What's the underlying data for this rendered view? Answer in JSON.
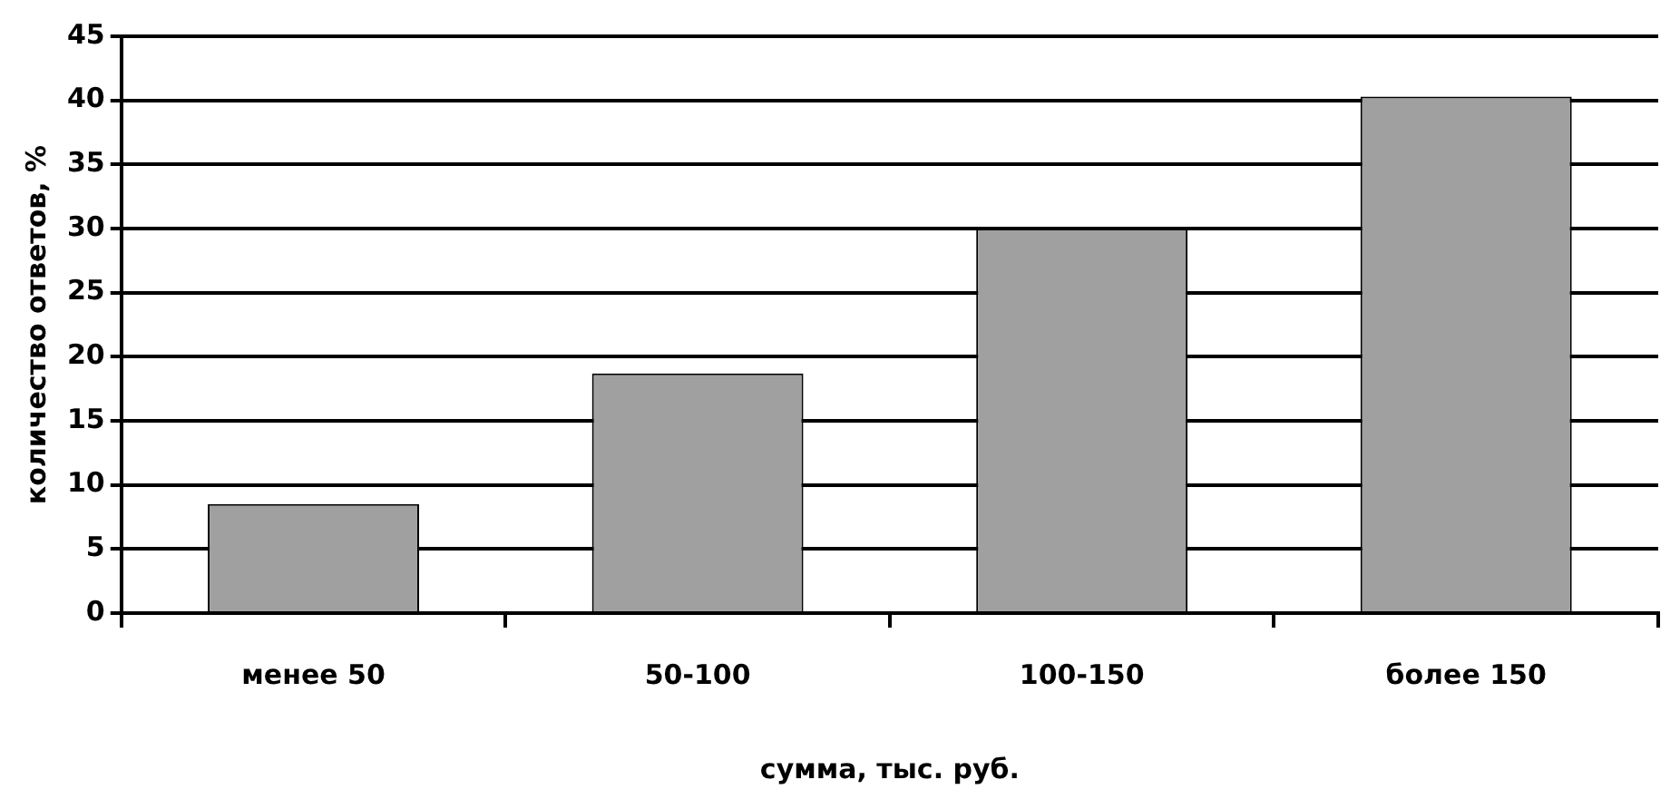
{
  "chart_data": {
    "type": "bar",
    "xlabel": "сумма, тыс. руб.",
    "ylabel": "количество ответов, %",
    "categories": [
      "менее 50",
      "50-100",
      "100-150",
      "более 150"
    ],
    "values": [
      8.5,
      18.7,
      30,
      40.3
    ],
    "color": "#a0a0a0",
    "ylim": [
      0,
      45
    ],
    "yticks": [
      0,
      5,
      10,
      15,
      20,
      25,
      30,
      35,
      40,
      45
    ],
    "grid": "y",
    "legend": false
  }
}
